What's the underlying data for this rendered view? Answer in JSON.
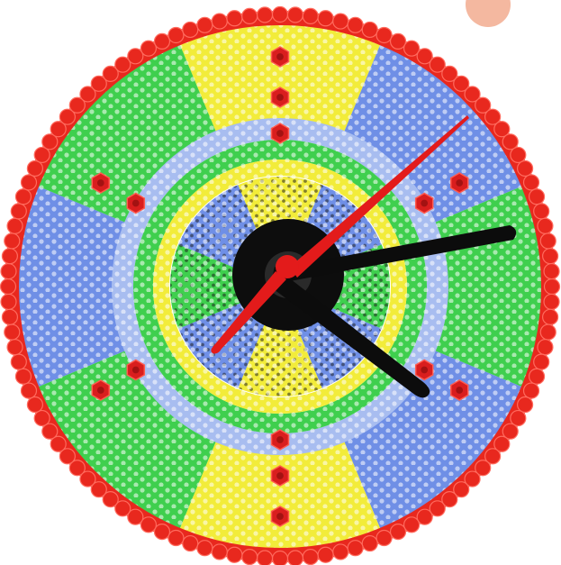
{
  "photo": {
    "subject": "bead-clock",
    "colors": {
      "border_red": "#e8281e",
      "bead_red": "#d91e1e",
      "yellow": "#f2ec3a",
      "green": "#3fcf4e",
      "blue": "#6f8fe6",
      "light_blue": "#a8bdf0",
      "hand_black": "#0c0c0c",
      "second_hand_red": "#e31b1b",
      "corner_peach": "#f4b8a0",
      "background": "#ffffff"
    },
    "icons": {
      "clock": "clock-icon",
      "hour_hand": "hour-hand-icon",
      "minute_hand": "minute-hand-icon",
      "second_hand": "second-hand-icon"
    }
  }
}
